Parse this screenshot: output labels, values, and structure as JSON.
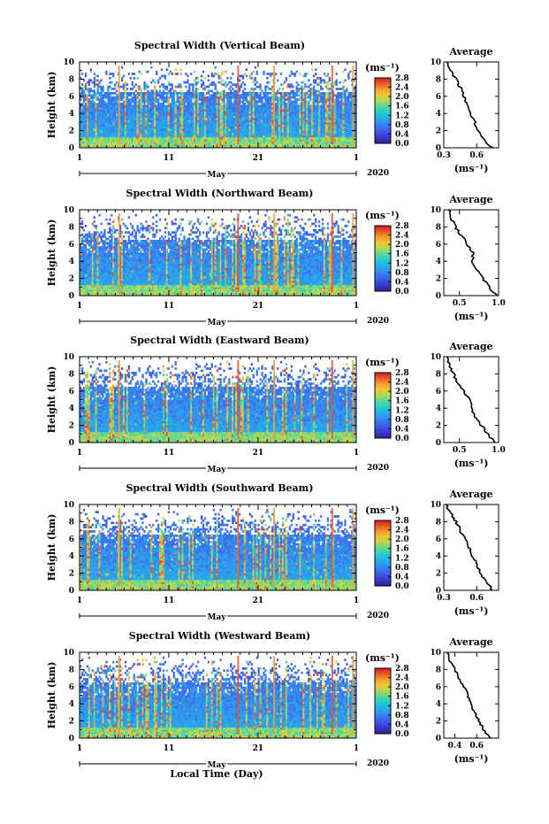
{
  "footer_xlabel": "Local Time (Day)",
  "colors": {
    "colormap": [
      "#3b1f8c",
      "#3438c9",
      "#3a56e6",
      "#3d73ee",
      "#2e9bee",
      "#1fb9e0",
      "#2ed1c4",
      "#6ad88f",
      "#b9d94a",
      "#f0c43a",
      "#f59a2c",
      "#e9542a",
      "#d01f1f"
    ],
    "axis": "#000000"
  },
  "chart_data": [
    {
      "type": "heatmap",
      "beam": "Vertical",
      "title": "Spectral Width (Vertical Beam)",
      "ylabel": "Height (km)",
      "ylim": [
        0,
        10
      ],
      "yticks": [
        "0",
        "2",
        "4",
        "6",
        "8",
        "10"
      ],
      "xticks": [
        "1",
        "11",
        "21",
        "1"
      ],
      "month_label": "May",
      "year_label": "2020",
      "colorbar": {
        "unit": "(ms⁻¹)",
        "range": [
          0,
          2.8
        ],
        "ticks": [
          "0.0",
          "0.4",
          "0.8",
          "1.2",
          "1.6",
          "2.0",
          "2.4",
          "2.8"
        ]
      },
      "avg_profile": {
        "title": "Average",
        "xlabel": "(ms⁻¹)",
        "xlim": [
          0.3,
          0.8
        ],
        "xticks": [
          "0.3",
          "0.6"
        ],
        "heights_km": [
          0,
          1,
          2,
          3,
          4,
          5,
          6,
          7,
          8,
          9,
          10
        ],
        "values": [
          0.74,
          0.66,
          0.62,
          0.58,
          0.54,
          0.52,
          0.48,
          0.45,
          0.41,
          0.37,
          0.33
        ]
      }
    },
    {
      "type": "heatmap",
      "beam": "Northward",
      "title": "Spectral Width (Northward Beam)",
      "ylabel": "Height (km)",
      "ylim": [
        0,
        10
      ],
      "yticks": [
        "0",
        "2",
        "4",
        "6",
        "8",
        "10"
      ],
      "xticks": [
        "1",
        "11",
        "21",
        "1"
      ],
      "month_label": "May",
      "year_label": "2020",
      "colorbar": {
        "unit": "(ms⁻¹)",
        "range": [
          0,
          2.8
        ],
        "ticks": [
          "0.0",
          "0.4",
          "0.8",
          "1.2",
          "1.6",
          "2.0",
          "2.4",
          "2.8"
        ]
      },
      "avg_profile": {
        "title": "Average",
        "xlabel": "(ms⁻¹)",
        "xlim": [
          0.3,
          1.0
        ],
        "xticks": [
          "0.5",
          "1.0"
        ],
        "heights_km": [
          0,
          1,
          2,
          3,
          4,
          5,
          6,
          7,
          8,
          9,
          10
        ],
        "values": [
          0.98,
          0.88,
          0.8,
          0.72,
          0.66,
          0.68,
          0.6,
          0.52,
          0.45,
          0.4,
          0.36
        ]
      }
    },
    {
      "type": "heatmap",
      "beam": "Eastward",
      "title": "Spectral Width (Eastward Beam)",
      "ylabel": "Height (km)",
      "ylim": [
        0,
        10
      ],
      "yticks": [
        "0",
        "2",
        "4",
        "6",
        "8",
        "10"
      ],
      "xticks": [
        "1",
        "11",
        "21",
        "1"
      ],
      "month_label": "May",
      "year_label": "2020",
      "colorbar": {
        "unit": "(ms⁻¹)",
        "range": [
          0,
          2.8
        ],
        "ticks": [
          "0.0",
          "0.4",
          "0.8",
          "1.2",
          "1.6",
          "2.0",
          "2.4",
          "2.8"
        ]
      },
      "avg_profile": {
        "title": "Average",
        "xlabel": "(ms⁻¹)",
        "xlim": [
          0.3,
          1.0
        ],
        "xticks": [
          "0.5",
          "1.0"
        ],
        "heights_km": [
          0,
          1,
          2,
          3,
          4,
          5,
          6,
          7,
          8,
          9,
          10
        ],
        "values": [
          0.96,
          0.86,
          0.78,
          0.7,
          0.66,
          0.62,
          0.56,
          0.48,
          0.42,
          0.38,
          0.34
        ]
      }
    },
    {
      "type": "heatmap",
      "beam": "Southward",
      "title": "Spectral Width (Southward Beam)",
      "ylabel": "Height (km)",
      "ylim": [
        0,
        10
      ],
      "yticks": [
        "0",
        "2",
        "4",
        "6",
        "8",
        "10"
      ],
      "xticks": [
        "1",
        "11",
        "21",
        "1"
      ],
      "month_label": "May",
      "year_label": "2020",
      "colorbar": {
        "unit": "(ms⁻¹)",
        "range": [
          0,
          2.8
        ],
        "ticks": [
          "0.0",
          "0.4",
          "0.8",
          "1.2",
          "1.6",
          "2.0",
          "2.4",
          "2.8"
        ]
      },
      "avg_profile": {
        "title": "Average",
        "xlabel": "(ms⁻¹)",
        "xlim": [
          0.3,
          0.8
        ],
        "xticks": [
          "0.3",
          "0.6"
        ],
        "heights_km": [
          0,
          1,
          2,
          3,
          4,
          5,
          6,
          7,
          8,
          9,
          10
        ],
        "values": [
          0.75,
          0.68,
          0.64,
          0.6,
          0.56,
          0.53,
          0.49,
          0.45,
          0.41,
          0.36,
          0.32
        ]
      }
    },
    {
      "type": "heatmap",
      "beam": "Westward",
      "title": "Spectral Width (Westward Beam)",
      "ylabel": "Height (km)",
      "ylim": [
        0,
        10
      ],
      "yticks": [
        "0",
        "2",
        "4",
        "6",
        "8",
        "10"
      ],
      "xticks": [
        "1",
        "11",
        "21",
        "1"
      ],
      "month_label": "May",
      "year_label": "2020",
      "colorbar": {
        "unit": "(ms⁻¹)",
        "range": [
          0,
          2.8
        ],
        "ticks": [
          "0.0",
          "0.4",
          "0.8",
          "1.2",
          "1.6",
          "2.0",
          "2.4",
          "2.8"
        ]
      },
      "avg_profile": {
        "title": "Average",
        "xlabel": "(ms⁻¹)",
        "xlim": [
          0.3,
          0.8
        ],
        "xticks": [
          "0.4",
          "0.6"
        ],
        "heights_km": [
          0,
          1,
          2,
          3,
          4,
          5,
          6,
          7,
          8,
          9,
          10
        ],
        "values": [
          0.72,
          0.66,
          0.62,
          0.58,
          0.55,
          0.52,
          0.48,
          0.44,
          0.4,
          0.36,
          0.33
        ]
      }
    }
  ]
}
